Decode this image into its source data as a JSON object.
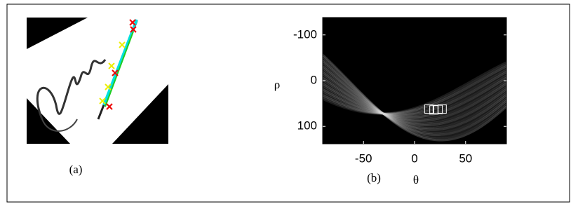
{
  "panel_a": {
    "label": "(a)"
  },
  "chart_data": {
    "type": "scatter",
    "label": "(b)",
    "xlabel": "θ",
    "ylabel": "ρ",
    "xlim": [
      -90,
      90
    ],
    "ylim": [
      -138,
      138
    ],
    "y_reversed": true,
    "xticks": [
      -50,
      0,
      50
    ],
    "yticks": [
      -100,
      0,
      100
    ],
    "x": [
      14,
      19,
      23,
      27
    ],
    "values": [
      62,
      64,
      63,
      62
    ],
    "marker": "square",
    "color": "#ffffff",
    "background": "#000000"
  }
}
